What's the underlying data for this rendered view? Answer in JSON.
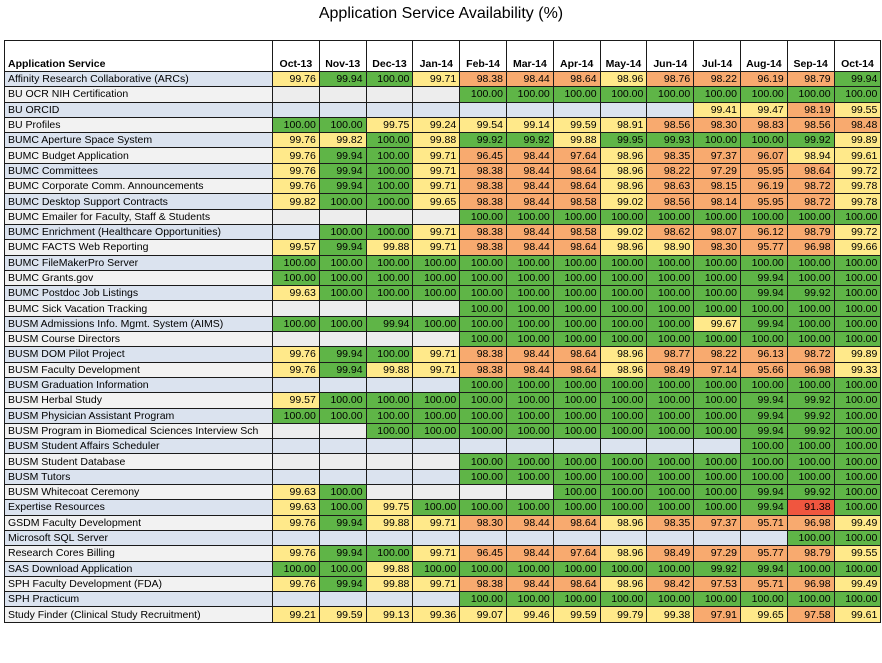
{
  "chart_data": {
    "type": "table",
    "title": "Application Service Availability (%)",
    "row_header": "Application Service",
    "columns": [
      "Oct-13",
      "Nov-13",
      "Dec-13",
      "Jan-14",
      "Feb-14",
      "Mar-14",
      "Apr-14",
      "May-14",
      "Jun-14",
      "Jul-14",
      "Aug-14",
      "Sep-14",
      "Oct-14"
    ],
    "rows": [
      {
        "name": "Affinity Research Collaborative (ARCs)",
        "values": [
          "99.76",
          "99.94",
          "100.00",
          "99.71",
          "98.38",
          "98.44",
          "98.64",
          "98.96",
          "98.76",
          "98.22",
          "96.19",
          "98.79",
          "99.94"
        ]
      },
      {
        "name": "BU OCR NIH Certification",
        "values": [
          "",
          "",
          "",
          "",
          "100.00",
          "100.00",
          "100.00",
          "100.00",
          "100.00",
          "100.00",
          "100.00",
          "100.00",
          "100.00"
        ]
      },
      {
        "name": "BU ORCID",
        "values": [
          "",
          "",
          "",
          "",
          "",
          "",
          "",
          "",
          "",
          "99.41",
          "99.47",
          "98.19",
          "99.55"
        ]
      },
      {
        "name": "BU Profiles",
        "values": [
          "100.00",
          "100.00",
          "99.75",
          "99.24",
          "99.54",
          "99.14",
          "99.59",
          "98.91",
          "98.56",
          "98.30",
          "98.83",
          "98.56",
          "98.48"
        ]
      },
      {
        "name": "BUMC Aperture Space System",
        "values": [
          "99.76",
          "99.82",
          "100.00",
          "99.88",
          "99.92",
          "99.92",
          "99.88",
          "99.95",
          "99.93",
          "100.00",
          "100.00",
          "99.92",
          "99.89"
        ]
      },
      {
        "name": "BUMC Budget Application",
        "values": [
          "99.76",
          "99.94",
          "100.00",
          "99.71",
          "96.45",
          "98.44",
          "97.64",
          "98.96",
          "98.35",
          "97.37",
          "96.07",
          "98.94",
          "99.61"
        ]
      },
      {
        "name": "BUMC Committees",
        "values": [
          "99.76",
          "99.94",
          "100.00",
          "99.71",
          "98.38",
          "98.44",
          "98.64",
          "98.96",
          "98.22",
          "97.29",
          "95.95",
          "98.64",
          "99.72"
        ]
      },
      {
        "name": "BUMC Corporate Comm. Announcements",
        "values": [
          "99.76",
          "99.94",
          "100.00",
          "99.71",
          "98.38",
          "98.44",
          "98.64",
          "98.96",
          "98.63",
          "98.15",
          "96.19",
          "98.72",
          "99.78"
        ]
      },
      {
        "name": "BUMC Desktop Support Contracts",
        "values": [
          "99.82",
          "100.00",
          "100.00",
          "99.65",
          "98.38",
          "98.44",
          "98.58",
          "99.02",
          "98.56",
          "98.14",
          "95.95",
          "98.72",
          "99.78"
        ]
      },
      {
        "name": "BUMC Emailer for Faculty, Staff & Students",
        "values": [
          "",
          "",
          "",
          "",
          "100.00",
          "100.00",
          "100.00",
          "100.00",
          "100.00",
          "100.00",
          "100.00",
          "100.00",
          "100.00"
        ]
      },
      {
        "name": "BUMC Enrichment (Healthcare Opportunities)",
        "values": [
          "",
          "100.00",
          "100.00",
          "99.71",
          "98.38",
          "98.44",
          "98.58",
          "99.02",
          "98.62",
          "98.07",
          "96.12",
          "98.79",
          "99.72"
        ]
      },
      {
        "name": "BUMC FACTS Web Reporting",
        "values": [
          "99.57",
          "99.94",
          "99.88",
          "99.71",
          "98.38",
          "98.44",
          "98.64",
          "98.96",
          "98.90",
          "98.30",
          "95.77",
          "96.98",
          "99.66"
        ]
      },
      {
        "name": "BUMC FileMakerPro Server",
        "values": [
          "100.00",
          "100.00",
          "100.00",
          "100.00",
          "100.00",
          "100.00",
          "100.00",
          "100.00",
          "100.00",
          "100.00",
          "100.00",
          "100.00",
          "100.00"
        ]
      },
      {
        "name": "BUMC Grants.gov",
        "values": [
          "100.00",
          "100.00",
          "100.00",
          "100.00",
          "100.00",
          "100.00",
          "100.00",
          "100.00",
          "100.00",
          "100.00",
          "99.94",
          "100.00",
          "100.00"
        ]
      },
      {
        "name": "BUMC Postdoc Job Listings",
        "values": [
          "99.63",
          "100.00",
          "100.00",
          "100.00",
          "100.00",
          "100.00",
          "100.00",
          "100.00",
          "100.00",
          "100.00",
          "99.94",
          "99.92",
          "100.00"
        ]
      },
      {
        "name": "BUMC Sick Vacation Tracking",
        "values": [
          "",
          "",
          "",
          "",
          "100.00",
          "100.00",
          "100.00",
          "100.00",
          "100.00",
          "100.00",
          "100.00",
          "100.00",
          "100.00"
        ]
      },
      {
        "name": "BUSM Admissions Info. Mgmt. System (AIMS)",
        "values": [
          "100.00",
          "100.00",
          "99.94",
          "100.00",
          "100.00",
          "100.00",
          "100.00",
          "100.00",
          "100.00",
          "99.67",
          "99.94",
          "100.00",
          "100.00"
        ]
      },
      {
        "name": "BUSM Course Directors",
        "values": [
          "",
          "",
          "",
          "",
          "100.00",
          "100.00",
          "100.00",
          "100.00",
          "100.00",
          "100.00",
          "100.00",
          "100.00",
          "100.00"
        ]
      },
      {
        "name": "BUSM DOM Pilot Project",
        "values": [
          "99.76",
          "99.94",
          "100.00",
          "99.71",
          "98.38",
          "98.44",
          "98.64",
          "98.96",
          "98.77",
          "98.22",
          "96.13",
          "98.72",
          "99.89"
        ]
      },
      {
        "name": "BUSM Faculty Development",
        "values": [
          "99.76",
          "99.94",
          "99.88",
          "99.71",
          "98.38",
          "98.44",
          "98.64",
          "98.96",
          "98.49",
          "97.14",
          "95.66",
          "96.98",
          "99.33"
        ]
      },
      {
        "name": "BUSM Graduation Information",
        "values": [
          "",
          "",
          "",
          "",
          "100.00",
          "100.00",
          "100.00",
          "100.00",
          "100.00",
          "100.00",
          "100.00",
          "100.00",
          "100.00"
        ]
      },
      {
        "name": "BUSM Herbal Study",
        "values": [
          "99.57",
          "100.00",
          "100.00",
          "100.00",
          "100.00",
          "100.00",
          "100.00",
          "100.00",
          "100.00",
          "100.00",
          "99.94",
          "99.92",
          "100.00"
        ]
      },
      {
        "name": "BUSM Physician Assistant Program",
        "values": [
          "100.00",
          "100.00",
          "100.00",
          "100.00",
          "100.00",
          "100.00",
          "100.00",
          "100.00",
          "100.00",
          "100.00",
          "99.94",
          "99.92",
          "100.00"
        ]
      },
      {
        "name": "BUSM Program in Biomedical Sciences Interview Sch",
        "values": [
          "",
          "",
          "100.00",
          "100.00",
          "100.00",
          "100.00",
          "100.00",
          "100.00",
          "100.00",
          "100.00",
          "99.94",
          "99.92",
          "100.00"
        ]
      },
      {
        "name": "BUSM Student Affairs Scheduler",
        "values": [
          "",
          "",
          "",
          "",
          "",
          "",
          "",
          "",
          "",
          "",
          "100.00",
          "100.00",
          "100.00"
        ]
      },
      {
        "name": "BUSM Student Database",
        "values": [
          "",
          "",
          "",
          "",
          "100.00",
          "100.00",
          "100.00",
          "100.00",
          "100.00",
          "100.00",
          "100.00",
          "100.00",
          "100.00"
        ]
      },
      {
        "name": "BUSM Tutors",
        "values": [
          "",
          "",
          "",
          "",
          "100.00",
          "100.00",
          "100.00",
          "100.00",
          "100.00",
          "100.00",
          "100.00",
          "100.00",
          "100.00"
        ]
      },
      {
        "name": "BUSM Whitecoat Ceremony",
        "values": [
          "99.63",
          "100.00",
          "",
          "",
          "",
          "",
          "100.00",
          "100.00",
          "100.00",
          "100.00",
          "99.94",
          "99.92",
          "100.00"
        ]
      },
      {
        "name": "Expertise Resources",
        "values": [
          "99.63",
          "100.00",
          "99.75",
          "100.00",
          "100.00",
          "100.00",
          "100.00",
          "100.00",
          "100.00",
          "100.00",
          "99.94",
          "91.38",
          "100.00"
        ]
      },
      {
        "name": "GSDM Faculty Development",
        "values": [
          "99.76",
          "99.94",
          "99.88",
          "99.71",
          "98.30",
          "98.44",
          "98.64",
          "98.96",
          "98.35",
          "97.37",
          "95.71",
          "96.98",
          "99.49"
        ]
      },
      {
        "name": "Microsoft SQL Server",
        "values": [
          "",
          "",
          "",
          "",
          "",
          "",
          "",
          "",
          "",
          "",
          "",
          "100.00",
          "100.00"
        ]
      },
      {
        "name": "Research Cores Billing",
        "values": [
          "99.76",
          "99.94",
          "100.00",
          "99.71",
          "96.45",
          "98.44",
          "97.64",
          "98.96",
          "98.49",
          "97.29",
          "95.77",
          "98.79",
          "99.55"
        ]
      },
      {
        "name": "SAS Download Application",
        "values": [
          "100.00",
          "100.00",
          "99.88",
          "100.00",
          "100.00",
          "100.00",
          "100.00",
          "100.00",
          "100.00",
          "99.92",
          "99.94",
          "100.00",
          "100.00"
        ]
      },
      {
        "name": "SPH Faculty Development (FDA)",
        "values": [
          "99.76",
          "99.94",
          "99.88",
          "99.71",
          "98.38",
          "98.44",
          "98.64",
          "98.96",
          "98.42",
          "97.53",
          "95.71",
          "96.98",
          "99.49"
        ]
      },
      {
        "name": "SPH Practicum",
        "values": [
          "",
          "",
          "",
          "",
          "100.00",
          "100.00",
          "100.00",
          "100.00",
          "100.00",
          "100.00",
          "100.00",
          "100.00",
          "100.00"
        ]
      },
      {
        "name": "Study Finder (Clinical Study Recruitment)",
        "values": [
          "99.21",
          "99.59",
          "99.13",
          "99.36",
          "99.07",
          "99.46",
          "99.59",
          "99.79",
          "99.38",
          "97.91",
          "99.65",
          "97.58",
          "99.61"
        ]
      }
    ],
    "colors": {
      "high": "#5fb547",
      "mid": "#ffe98a",
      "low": "#f8aa6f",
      "worst": "#f0563f",
      "empty_name_even": "#dbe3ef",
      "empty_name_odd": "#f2f2f2",
      "empty_cell": "#dbe3ef",
      "empty_cell_alt": "#ededed"
    }
  }
}
